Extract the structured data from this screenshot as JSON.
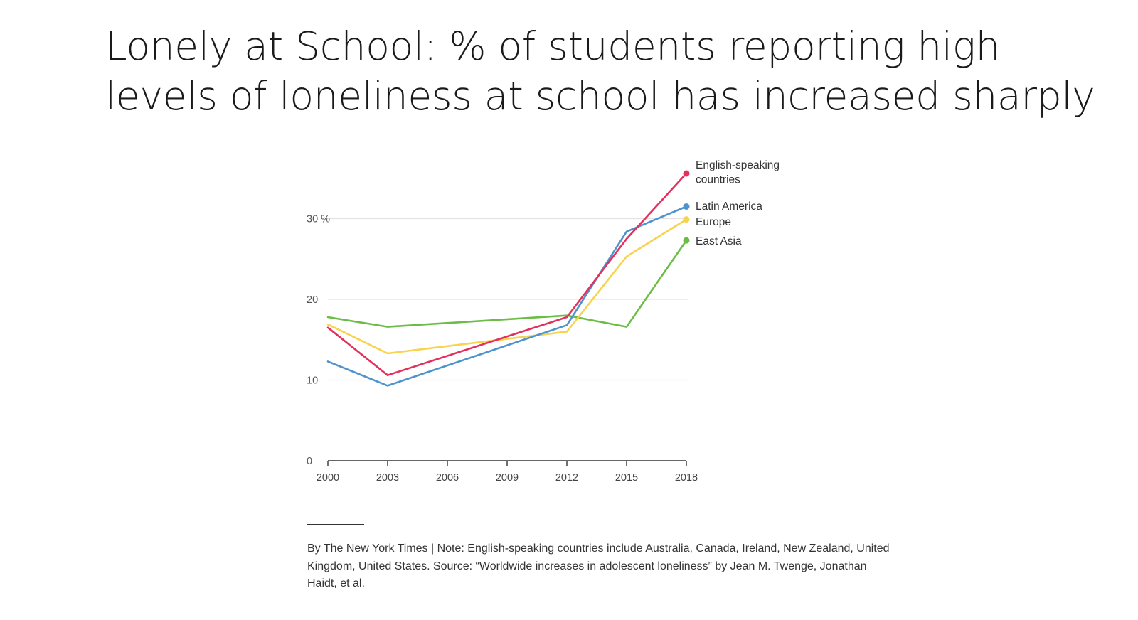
{
  "title_lines": [
    "Lonely at School: % of students reporting high",
    "levels of loneliness at school has increased sharply"
  ],
  "note": "By The New York Times | Note: English-speaking countries include Australia, Canada, Ireland, New Zealand, United Kingdom, United States. Source: “Worldwide increases in adolescent loneliness” by Jean M. Twenge, Jonathan Haidt, et al.",
  "chart_data": {
    "type": "line",
    "x": [
      2000,
      2003,
      2006,
      2009,
      2012,
      2015,
      2018
    ],
    "xticks": [
      "2000",
      "2003",
      "2006",
      "2009",
      "2012",
      "2015",
      "2018"
    ],
    "yticks": [
      {
        "value": 0,
        "label": "0"
      },
      {
        "value": 10,
        "label": "10"
      },
      {
        "value": 20,
        "label": "20"
      },
      {
        "value": 30,
        "label": "30 %"
      }
    ],
    "xlim": [
      2000,
      2018
    ],
    "ylim": [
      0,
      30
    ],
    "grid": true,
    "series": [
      {
        "name": "East Asia",
        "color": "#6bbd45",
        "points": [
          [
            2000,
            17.8
          ],
          [
            2003,
            16.6
          ],
          [
            2012,
            18.0
          ],
          [
            2015,
            16.6
          ],
          [
            2018,
            27.3
          ]
        ],
        "label_lines": [
          "East Asia"
        ]
      },
      {
        "name": "Europe",
        "color": "#f7d350",
        "points": [
          [
            2000,
            16.9
          ],
          [
            2003,
            13.3
          ],
          [
            2012,
            16.0
          ],
          [
            2015,
            25.3
          ],
          [
            2018,
            29.9
          ]
        ],
        "label_lines": [
          "Europe"
        ]
      },
      {
        "name": "Latin America",
        "color": "#4f93cc",
        "points": [
          [
            2000,
            12.3
          ],
          [
            2003,
            9.3
          ],
          [
            2012,
            16.8
          ],
          [
            2015,
            28.4
          ],
          [
            2018,
            31.5
          ]
        ],
        "label_lines": [
          "Latin America"
        ]
      },
      {
        "name": "English-speaking countries",
        "color": "#e3305d",
        "points": [
          [
            2000,
            16.5
          ],
          [
            2003,
            10.6
          ],
          [
            2012,
            17.8
          ],
          [
            2015,
            27.5
          ],
          [
            2018,
            35.6
          ]
        ],
        "label_lines": [
          "English-speaking",
          "countries"
        ]
      }
    ]
  }
}
